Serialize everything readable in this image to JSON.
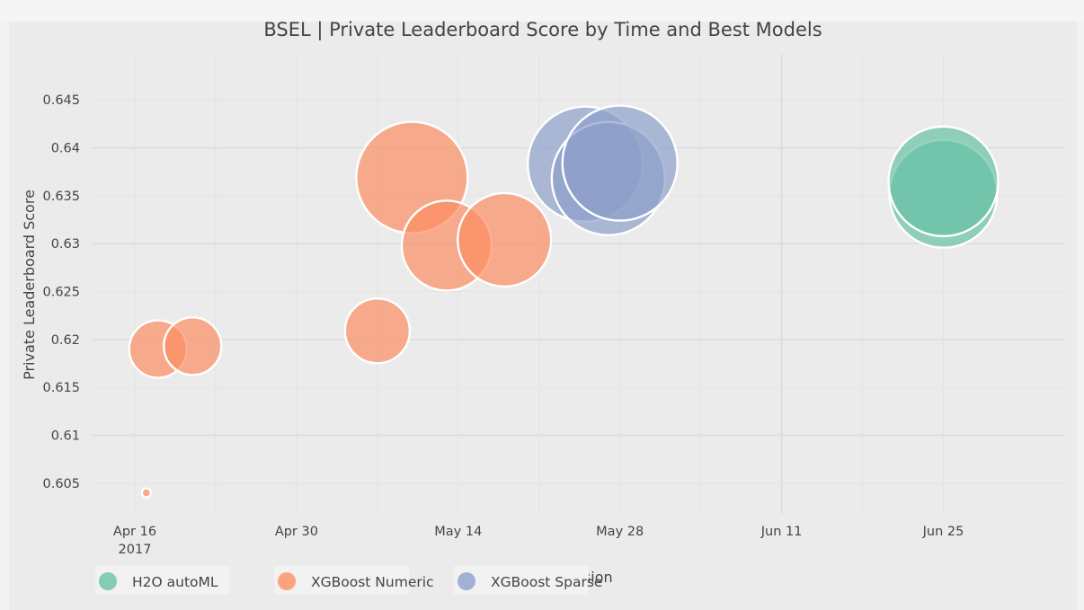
{
  "chart_data": {
    "type": "scatter",
    "title": "BSEL | Private Leaderboard Score by Time and Best Models",
    "xlabel": "Date of Submission",
    "ylabel": "Private Leaderboard Score",
    "x_ticks": [
      {
        "date": "2017-04-16",
        "label": "Apr 16",
        "sublabel": "2017"
      },
      {
        "date": "2017-04-30",
        "label": "Apr 30",
        "sublabel": ""
      },
      {
        "date": "2017-05-14",
        "label": "May 14",
        "sublabel": ""
      },
      {
        "date": "2017-05-28",
        "label": "May 28",
        "sublabel": ""
      },
      {
        "date": "2017-06-11",
        "label": "Jun 11",
        "sublabel": ""
      },
      {
        "date": "2017-06-25",
        "label": "Jun 25",
        "sublabel": ""
      }
    ],
    "y_ticks": [
      0.605,
      0.61,
      0.615,
      0.62,
      0.625,
      0.63,
      0.635,
      0.64,
      0.645
    ],
    "y_tick_labels": [
      "0.605",
      "0.61",
      "0.615",
      "0.62",
      "0.625",
      "0.63",
      "0.635",
      "0.64",
      "0.645"
    ],
    "grid": true,
    "legend_position": "bottom",
    "series": [
      {
        "name": "H2O autoML",
        "color": "#66c2a5",
        "points": [
          {
            "x": "2017-06-25",
            "y": 0.6352,
            "size": 60
          },
          {
            "x": "2017-06-25",
            "y": 0.6365,
            "size": 61
          }
        ]
      },
      {
        "name": "XGBoost Numeric",
        "color": "#fc8d62",
        "points": [
          {
            "x": "2017-04-17",
            "y": 0.604,
            "size": 5
          },
          {
            "x": "2017-04-18",
            "y": 0.619,
            "size": 32
          },
          {
            "x": "2017-04-21",
            "y": 0.6193,
            "size": 32
          },
          {
            "x": "2017-05-07",
            "y": 0.6209,
            "size": 36
          },
          {
            "x": "2017-05-10",
            "y": 0.6369,
            "size": 62
          },
          {
            "x": "2017-05-13",
            "y": 0.6298,
            "size": 50
          },
          {
            "x": "2017-05-18",
            "y": 0.6304,
            "size": 52
          }
        ]
      },
      {
        "name": "XGBoost Sparse",
        "color": "#8da0cb",
        "points": [
          {
            "x": "2017-05-25",
            "y": 0.6383,
            "size": 64
          },
          {
            "x": "2017-05-27",
            "y": 0.6368,
            "size": 63
          },
          {
            "x": "2017-05-28",
            "y": 0.6384,
            "size": 64
          }
        ]
      }
    ]
  }
}
